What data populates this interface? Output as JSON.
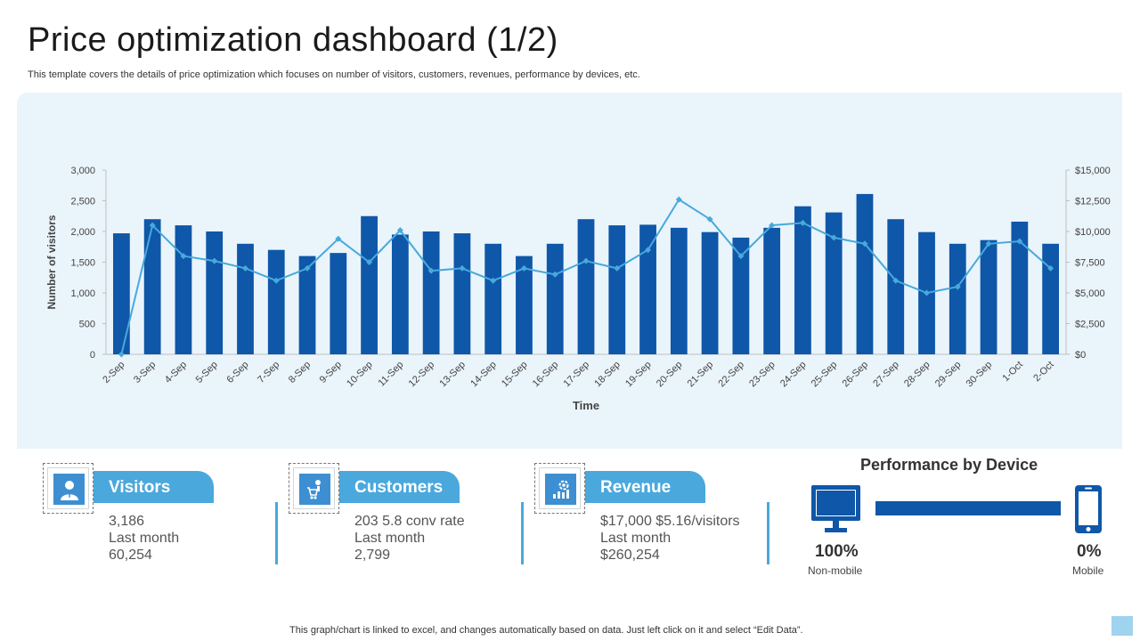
{
  "header": {
    "title": "Price optimization dashboard (1/2)",
    "subtitle": "This template covers the details of price optimization which focuses on number of visitors, customers, revenues, performance by devices, etc."
  },
  "colors": {
    "bar": "#0f57a8",
    "line": "#47a9dd",
    "panel": "#eaf4fb",
    "accent": "#4aa8dc"
  },
  "chart_data": {
    "type": "bar",
    "title": "",
    "xlabel": "Time",
    "ylabel": "Number of visitors",
    "categories": [
      "2-Sep",
      "3-Sep",
      "4-Sep",
      "5-Sep",
      "6-Sep",
      "7-Sep",
      "8-Sep",
      "9-Sep",
      "10-Sep",
      "11-Sep",
      "12-Sep",
      "13-Sep",
      "14-Sep",
      "15-Sep",
      "16-Sep",
      "17-Sep",
      "18-Sep",
      "19-Sep",
      "20-Sep",
      "21-Sep",
      "22-Sep",
      "23-Sep",
      "24-Sep",
      "25-Sep",
      "26-Sep",
      "27-Sep",
      "28-Sep",
      "29-Sep",
      "30-Sep",
      "1-Oct",
      "2-Oct"
    ],
    "ylim": [
      0,
      3000
    ],
    "y2lim": [
      0,
      15000
    ],
    "yticks": [
      "0",
      "500",
      "1,000",
      "1,500",
      "2,000",
      "2,500",
      "3,000"
    ],
    "y2ticks": [
      "$0",
      "$2,500",
      "$5,000",
      "$7,500",
      "$10,000",
      "$12,500",
      "$15,000"
    ],
    "series": [
      {
        "name": "Visitors",
        "type": "bar",
        "axis": "left",
        "values": [
          1970,
          2200,
          2100,
          2000,
          1800,
          1700,
          1600,
          1650,
          2250,
          1950,
          2000,
          1970,
          1800,
          1600,
          1800,
          2200,
          2100,
          2110,
          2060,
          1990,
          1900,
          2060,
          2410,
          2310,
          2610,
          2200,
          1990,
          1800,
          1860,
          2160,
          1800
        ]
      },
      {
        "name": "Revenue",
        "type": "line",
        "axis": "right",
        "values": [
          0,
          10500,
          8000,
          7600,
          7000,
          6000,
          7000,
          9400,
          7500,
          10100,
          6800,
          7000,
          6000,
          7000,
          6500,
          7600,
          7000,
          8500,
          12600,
          11000,
          8000,
          10500,
          10700,
          9500,
          9000,
          6000,
          5000,
          5500,
          9000,
          9200,
          7000
        ]
      }
    ]
  },
  "kpis": [
    {
      "title": "Visitors",
      "line1": "3,186",
      "line2": "Last month",
      "line3": "60,254",
      "icon": "user-icon"
    },
    {
      "title": "Customers",
      "line1": "203 5.8 conv rate",
      "line2": "Last month",
      "line3": "2,799",
      "icon": "cart-icon"
    },
    {
      "title": "Revenue",
      "line1": "$17,000 $5.16/visitors",
      "line2": "Last month",
      "line3": "$260,254",
      "icon": "growth-icon"
    }
  ],
  "performance": {
    "title": "Performance by Device",
    "non_mobile_pct": "100%",
    "non_mobile_label": "Non-mobile",
    "mobile_pct": "0%",
    "mobile_label": "Mobile",
    "non_mobile_share": 1.0
  },
  "footer": {
    "note": "This graph/chart is linked to excel,  and changes automatically based on data. Just left click on it and select “Edit Data”."
  }
}
